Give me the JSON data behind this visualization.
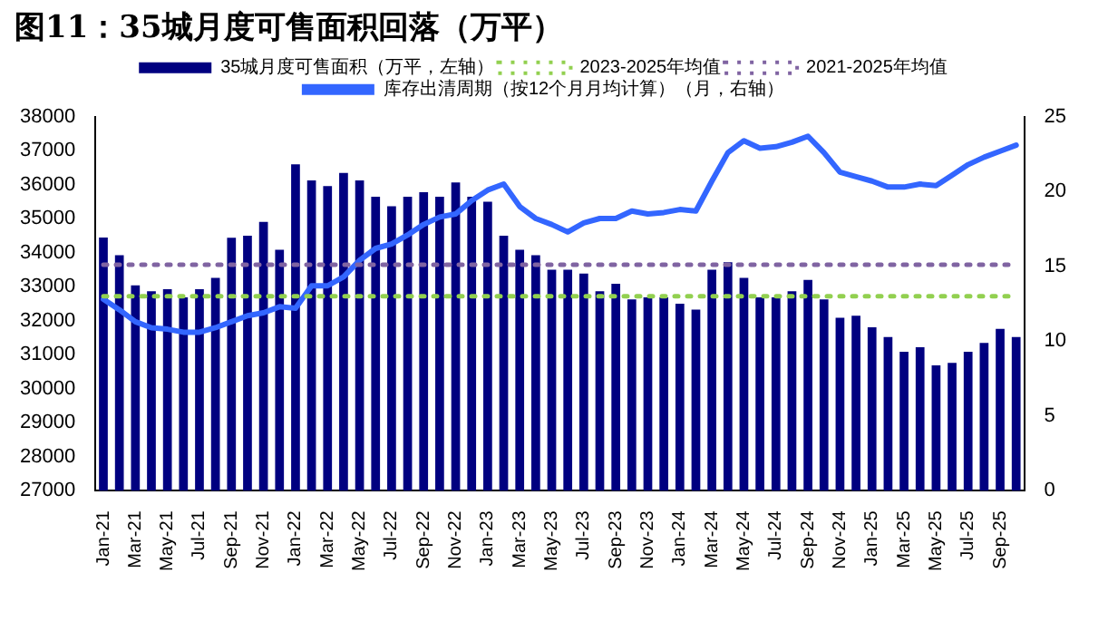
{
  "chart_data": {
    "type": "bar",
    "title": "图11：35城月度可售面积回落（万平）",
    "categories": [
      "Jan-21",
      null,
      "Mar-21",
      null,
      "May-21",
      null,
      "Jul-21",
      null,
      "Sep-21",
      null,
      "Nov-21",
      null,
      "Jan-22",
      null,
      "Mar-22",
      null,
      "May-22",
      null,
      "Jul-22",
      null,
      "Sep-22",
      null,
      "Nov-22",
      null,
      "Jan-23",
      null,
      "Mar-23",
      null,
      "May-23",
      null,
      "Jul-23",
      null,
      "Sep-23",
      null,
      "Nov-23",
      null,
      "Jan-24",
      null,
      "Mar-24",
      null,
      "May-24",
      null,
      "Jul-24",
      null,
      "Sep-24",
      null,
      "Nov-24",
      null,
      "Jan-25",
      null,
      "Mar-25",
      null,
      "May-25",
      null,
      "Jul-25",
      null,
      "Sep-25",
      null
    ],
    "series": [
      {
        "name": "35城月度可售面积（万平，左轴）",
        "color": "#000080",
        "values": [
          34450,
          33930,
          33040,
          32870,
          32930,
          32690,
          32930,
          33260,
          34440,
          34500,
          34910,
          34090,
          36600,
          36130,
          35960,
          36350,
          36130,
          35650,
          35370,
          35650,
          35780,
          35650,
          36070,
          35650,
          35500,
          34500,
          34090,
          33930,
          33500,
          33500,
          33390,
          32870,
          33090,
          32630,
          32690,
          32690,
          32500,
          32330,
          33500,
          33720,
          33260,
          32690,
          32690,
          32870,
          33200,
          32630,
          32090,
          32150,
          31810,
          31520,
          31090,
          31220,
          30690,
          30760,
          31090,
          31350,
          31760,
          31520
        ]
      },
      {
        "name": "2023-2025年均值",
        "type": "line",
        "color": "#92d050",
        "line_style": "dotted",
        "values": [
          32720,
          32720,
          32720,
          32720,
          32720,
          32720,
          32720,
          32720,
          32720,
          32720,
          32720,
          32720,
          32720,
          32720,
          32720,
          32720,
          32720,
          32720,
          32720,
          32720,
          32720,
          32720,
          32720,
          32720,
          32720,
          32720,
          32720,
          32720,
          32720,
          32720,
          32720,
          32720,
          32720,
          32720,
          32720,
          32720,
          32720,
          32720,
          32720,
          32720,
          32720,
          32720,
          32720,
          32720,
          32720,
          32720,
          32720,
          32720,
          32720,
          32720,
          32720,
          32720,
          32720,
          32720,
          32720,
          32720,
          32720,
          32720
        ]
      },
      {
        "name": "2021-2025年均值",
        "type": "line",
        "color": "#8064a2",
        "line_style": "dotted",
        "values": [
          33650,
          33650,
          33650,
          33650,
          33650,
          33650,
          33650,
          33650,
          33650,
          33650,
          33650,
          33650,
          33650,
          33650,
          33650,
          33650,
          33650,
          33650,
          33650,
          33650,
          33650,
          33650,
          33650,
          33650,
          33650,
          33650,
          33650,
          33650,
          33650,
          33650,
          33650,
          33650,
          33650,
          33650,
          33650,
          33650,
          33650,
          33650,
          33650,
          33650,
          33650,
          33650,
          33650,
          33650,
          33650,
          33650,
          33650,
          33650,
          33650,
          33650,
          33650,
          33650,
          33650,
          33650,
          33650,
          33650,
          33650,
          33650
        ]
      },
      {
        "name": "库存出清周期（按12个月月均计算）（月，右轴）",
        "type": "line",
        "axis": "y2",
        "color": "#3366ff",
        "line_style": "solid",
        "values": [
          12.8,
          12.1,
          11.3,
          10.9,
          10.8,
          10.6,
          10.6,
          10.9,
          11.3,
          11.7,
          11.9,
          12.3,
          12.2,
          13.7,
          13.7,
          14.3,
          15.4,
          16.2,
          16.5,
          17.1,
          17.8,
          18.3,
          18.5,
          19.4,
          20.1,
          20.5,
          19.0,
          18.2,
          17.8,
          17.3,
          17.9,
          18.2,
          18.2,
          18.7,
          18.5,
          18.6,
          18.8,
          18.7,
          20.7,
          22.6,
          23.4,
          22.9,
          23.0,
          23.3,
          23.7,
          22.6,
          21.3,
          21.0,
          20.7,
          20.3,
          20.3,
          20.5,
          20.4,
          21.1,
          21.8,
          22.3,
          22.7,
          23.1
        ]
      }
    ],
    "ylim": [
      27000,
      38000
    ],
    "yticks": [
      27000,
      28000,
      29000,
      30000,
      31000,
      32000,
      33000,
      34000,
      35000,
      36000,
      37000,
      38000
    ],
    "y2lim": [
      0,
      25
    ],
    "y2ticks": [
      0,
      5,
      10,
      15,
      20,
      25
    ],
    "grid": false,
    "legend": "top",
    "marker": "none"
  }
}
